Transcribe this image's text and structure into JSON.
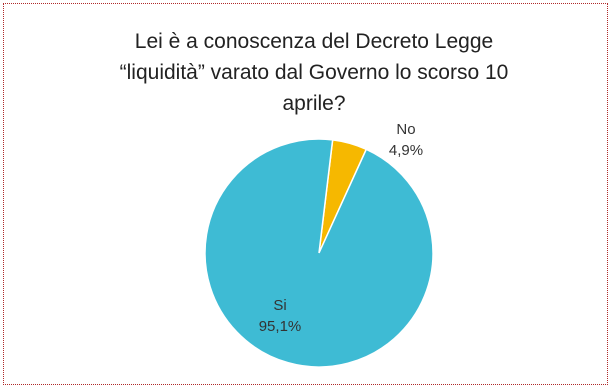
{
  "chart_data": {
    "type": "pie",
    "title": [
      "Lei è a conoscenza del Decreto Legge",
      "“liquidità” varato dal Governo lo scorso 10",
      "aprile?"
    ],
    "slices": [
      {
        "label": "No",
        "value": 4.9,
        "value_text": "4,9%",
        "color": "#F6B800"
      },
      {
        "label": "Si",
        "value": 95.1,
        "value_text": "95,1%",
        "color": "#3EBBD4"
      }
    ]
  }
}
